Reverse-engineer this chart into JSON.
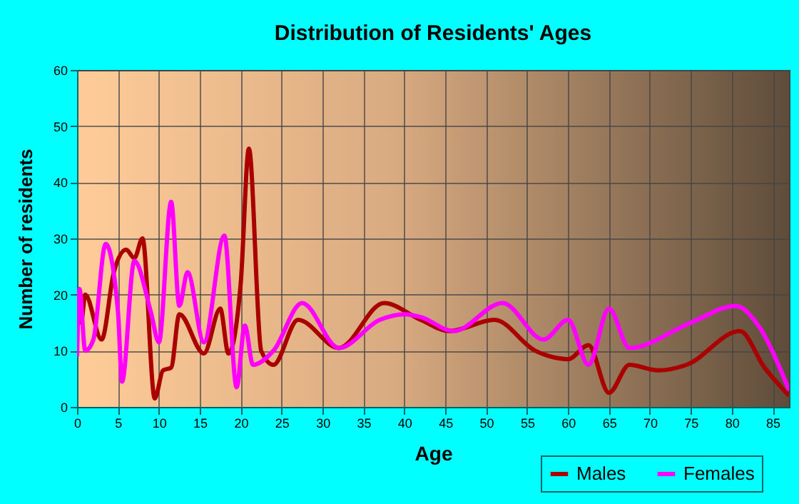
{
  "chart_data": {
    "type": "line",
    "title": "Distribution of Residents' Ages",
    "xlabel": "Age",
    "ylabel": "Number of residents",
    "xlim": [
      0,
      87
    ],
    "xticks": [
      0,
      5,
      10,
      15,
      20,
      25,
      30,
      35,
      40,
      45,
      50,
      55,
      60,
      65,
      70,
      75,
      80,
      85
    ],
    "ylim": [
      0,
      60
    ],
    "yticks": [
      0,
      10,
      20,
      30,
      40,
      50,
      60
    ],
    "grid": true,
    "legend": "bottom right",
    "series": [
      {
        "name": "Males",
        "color": "#aa0000",
        "x": [
          0,
          0.5,
          1,
          3,
          4.5,
          6,
          7,
          8,
          9.5,
          10.5,
          11.5,
          12.5,
          15.5,
          17.5,
          18.5,
          20,
          21,
          22.5,
          24,
          27,
          32,
          37.5,
          42,
          45.5,
          51,
          56,
          60,
          62.5,
          65,
          67.5,
          71,
          74.5,
          81,
          84,
          87
        ],
        "values": [
          20,
          15,
          20,
          12,
          24,
          28,
          26.5,
          30,
          1.5,
          6.5,
          7,
          16.5,
          9.5,
          17.5,
          9.5,
          22,
          46,
          10,
          7.5,
          15.5,
          10.5,
          18.5,
          15.5,
          13.5,
          15.5,
          10,
          8.5,
          11,
          2.5,
          7.5,
          6.5,
          7.5,
          13.5,
          7,
          2
        ]
      },
      {
        "name": "Females",
        "color": "#ff00ff",
        "x": [
          0,
          0.3,
          1,
          2,
          3.5,
          5,
          5.5,
          7,
          9,
          10,
          11.5,
          12.5,
          13.5,
          15.5,
          18,
          19.5,
          20.5,
          21.5,
          24,
          27.5,
          32,
          37,
          40,
          42,
          46,
          52,
          57,
          60,
          62.5,
          65,
          67.5,
          75,
          80.5,
          83,
          87
        ],
        "values": [
          9,
          21,
          10,
          12,
          29,
          17,
          4.5,
          26,
          17,
          11.5,
          36.5,
          18,
          24,
          11.5,
          30.5,
          3.5,
          14.5,
          7.5,
          10,
          18.5,
          10.5,
          15.5,
          16.5,
          16,
          13.5,
          18.5,
          12,
          15.5,
          7.5,
          17.5,
          10.5,
          15,
          18,
          15,
          3
        ]
      }
    ]
  }
}
